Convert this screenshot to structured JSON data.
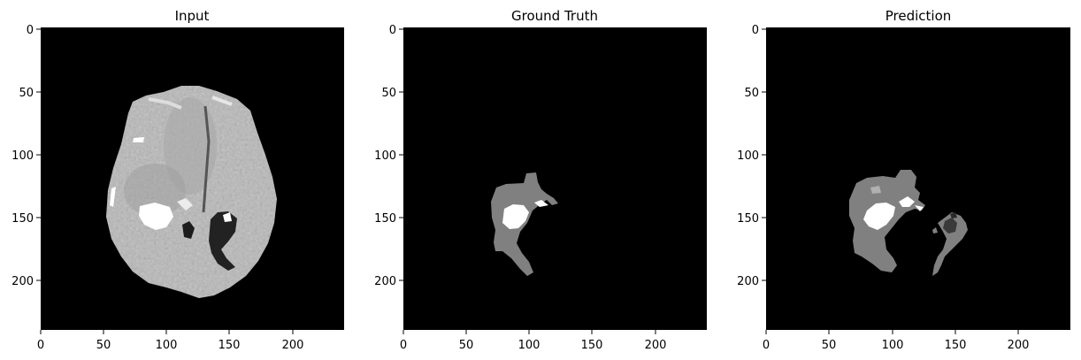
{
  "figure": {
    "panels": [
      {
        "title": "Input",
        "xticks": [
          "0",
          "50",
          "100",
          "150",
          "200"
        ],
        "yticks": [
          "0",
          "50",
          "100",
          "150",
          "200"
        ]
      },
      {
        "title": "Ground Truth",
        "xticks": [
          "0",
          "50",
          "100",
          "150",
          "200"
        ],
        "yticks": [
          "0",
          "50",
          "100",
          "150",
          "200"
        ]
      },
      {
        "title": "Prediction",
        "xticks": [
          "0",
          "50",
          "100",
          "150",
          "200"
        ],
        "yticks": [
          "0",
          "50",
          "100",
          "150",
          "200"
        ]
      }
    ],
    "colors": {
      "background": "#000000",
      "brain_tissue": "#b4b4b4",
      "edema_label": "#808080",
      "enhancing_label": "#ffffff",
      "necrotic_label": "#3a3a3a"
    }
  }
}
